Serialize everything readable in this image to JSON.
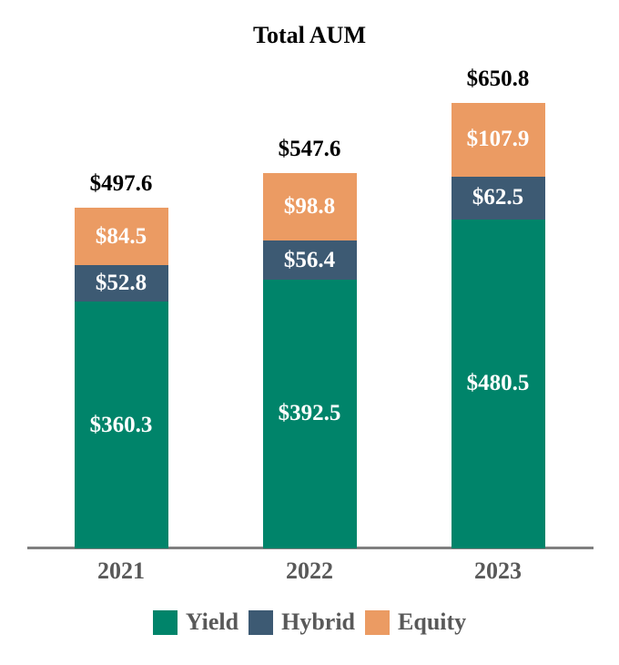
{
  "chart_data": {
    "type": "bar",
    "stacked": true,
    "title": "Total AUM",
    "categories": [
      "2021",
      "2022",
      "2023"
    ],
    "series": [
      {
        "name": "Yield",
        "color": "#00846A",
        "values": [
          360.3,
          392.5,
          480.5
        ],
        "labels": [
          "$360.3",
          "$392.5",
          "$480.5"
        ]
      },
      {
        "name": "Hybrid",
        "color": "#3D5A73",
        "values": [
          52.8,
          56.4,
          62.5
        ],
        "labels": [
          "$52.8",
          "$56.4",
          "$62.5"
        ]
      },
      {
        "name": "Equity",
        "color": "#EB9B63",
        "values": [
          84.5,
          98.8,
          107.9
        ],
        "labels": [
          "$84.5",
          "$98.8",
          "$107.9"
        ]
      }
    ],
    "totals": [
      497.6,
      547.6,
      650.8
    ],
    "total_labels": [
      "$497.6",
      "$547.6",
      "$650.8"
    ],
    "legend": [
      "Yield",
      "Hybrid",
      "Equity"
    ],
    "legend_position": "bottom",
    "xlabel": "",
    "ylabel": "",
    "ylim": [
      0,
      651
    ],
    "grid": false,
    "axis_line_color": "#7F7F7F",
    "category_label_color": "#595959",
    "total_label_color": "#000000",
    "segment_label_color": "#FFFFFF"
  }
}
